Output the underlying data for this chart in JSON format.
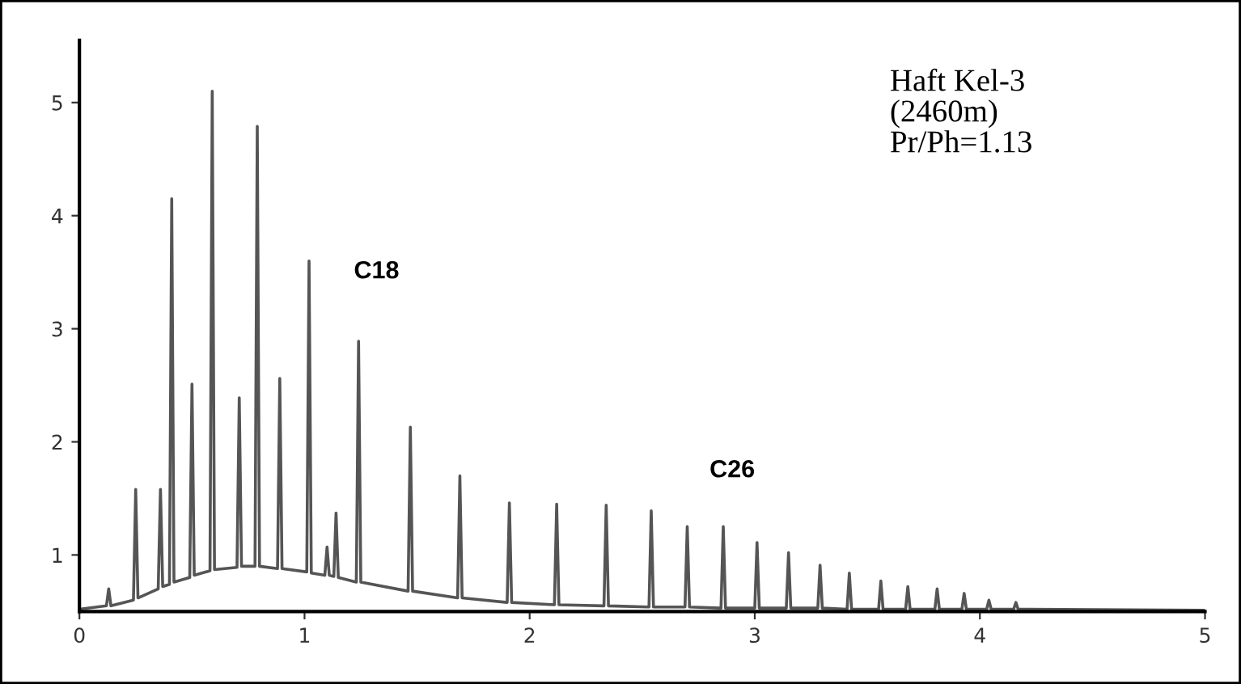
{
  "chart_data": {
    "type": "line",
    "x": [
      0,
      0.12,
      0.13,
      0.14,
      0.24,
      0.25,
      0.26,
      0.35,
      0.36,
      0.37,
      0.4,
      0.41,
      0.42,
      0.49,
      0.5,
      0.51,
      0.58,
      0.59,
      0.6,
      0.7,
      0.71,
      0.72,
      0.78,
      0.79,
      0.8,
      0.88,
      0.89,
      0.9,
      1.01,
      1.02,
      1.03,
      1.09,
      1.1,
      1.11,
      1.13,
      1.14,
      1.15,
      1.23,
      1.24,
      1.25,
      1.46,
      1.47,
      1.48,
      1.68,
      1.69,
      1.7,
      1.9,
      1.91,
      1.92,
      2.11,
      2.12,
      2.13,
      2.33,
      2.34,
      2.35,
      2.53,
      2.54,
      2.55,
      2.69,
      2.7,
      2.71,
      2.85,
      2.86,
      2.87,
      3.0,
      3.01,
      3.02,
      3.14,
      3.15,
      3.16,
      3.28,
      3.29,
      3.3,
      3.41,
      3.42,
      3.43,
      3.55,
      3.56,
      3.57,
      3.67,
      3.68,
      3.69,
      3.8,
      3.81,
      3.82,
      3.92,
      3.93,
      3.94,
      4.03,
      4.04,
      4.05,
      4.15,
      4.16,
      4.17,
      5.0
    ],
    "series": [
      {
        "color": "#555555",
        "values": [
          0.52,
          0.55,
          0.7,
          0.55,
          0.6,
          1.58,
          0.62,
          0.7,
          1.58,
          0.72,
          0.74,
          4.15,
          0.76,
          0.8,
          2.51,
          0.82,
          0.86,
          5.1,
          0.87,
          0.89,
          2.39,
          0.9,
          0.9,
          4.79,
          0.9,
          0.88,
          2.56,
          0.88,
          0.85,
          3.6,
          0.84,
          0.82,
          1.07,
          0.82,
          0.81,
          1.37,
          0.8,
          0.76,
          2.89,
          0.76,
          0.68,
          2.13,
          0.68,
          0.62,
          1.7,
          0.62,
          0.58,
          1.46,
          0.58,
          0.56,
          1.45,
          0.56,
          0.55,
          1.44,
          0.55,
          0.54,
          1.39,
          0.54,
          0.54,
          1.25,
          0.54,
          0.53,
          1.25,
          0.53,
          0.53,
          1.11,
          0.53,
          0.53,
          1.02,
          0.53,
          0.53,
          0.91,
          0.53,
          0.52,
          0.84,
          0.52,
          0.52,
          0.77,
          0.52,
          0.52,
          0.72,
          0.52,
          0.52,
          0.7,
          0.52,
          0.52,
          0.66,
          0.52,
          0.52,
          0.6,
          0.52,
          0.52,
          0.58,
          0.52,
          0.51
        ]
      }
    ],
    "xlim": [
      0,
      5
    ],
    "xticks": [
      0,
      1,
      2,
      3,
      4,
      5
    ],
    "ylim": [
      0.5,
      5.55
    ],
    "yticks": [
      1,
      2,
      3,
      4,
      5
    ],
    "grid": false,
    "legend": false,
    "marker": "none",
    "line_style": "solid",
    "annotations": [
      {
        "text": "C18",
        "x": 1.24,
        "y": 2.89
      },
      {
        "text": "C26",
        "x": 2.86,
        "y": 1.25
      },
      "Haft Kel-3\n(2460m)\nPr/Ph=1.13"
    ]
  }
}
